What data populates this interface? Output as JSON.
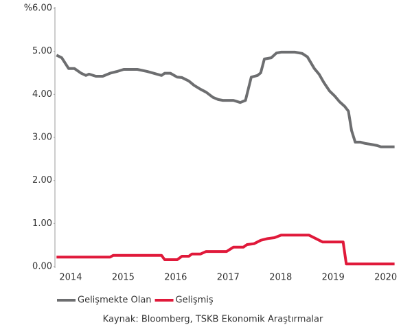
{
  "chart_data": {
    "type": "line",
    "source": "Kaynak: Bloomberg, TSKB Ekonomik Araştırmalar",
    "xlim": [
      2013.7,
      2020.24
    ],
    "xticks": [
      2014,
      2015,
      2016,
      2017,
      2018,
      2019,
      2020
    ],
    "ylim": [
      0,
      6
    ],
    "yticks": [
      {
        "value": 0,
        "label": "0.00"
      },
      {
        "value": 1,
        "label": "1.00"
      },
      {
        "value": 2,
        "label": "2.00"
      },
      {
        "value": 3,
        "label": "3.00"
      },
      {
        "value": 4,
        "label": "4.00"
      },
      {
        "value": 5,
        "label": "5.00"
      },
      {
        "value": 6,
        "label": "%6.00"
      }
    ],
    "grid": false,
    "series": [
      {
        "name": "Gelişmekte Olan",
        "color": "#6d6e70",
        "x": [
          2013.73,
          2013.83,
          2013.96,
          2014.07,
          2014.2,
          2014.29,
          2014.35,
          2014.48,
          2014.61,
          2014.75,
          2014.88,
          2015.01,
          2015.27,
          2015.46,
          2015.73,
          2015.79,
          2015.9,
          2016.03,
          2016.12,
          2016.25,
          2016.35,
          2016.47,
          2016.58,
          2016.71,
          2016.81,
          2016.9,
          2017.1,
          2017.23,
          2017.33,
          2017.44,
          2017.56,
          2017.62,
          2017.69,
          2017.82,
          2017.92,
          2018.01,
          2018.27,
          2018.41,
          2018.51,
          2018.64,
          2018.73,
          2018.82,
          2018.93,
          2019.03,
          2019.12,
          2019.22,
          2019.29,
          2019.35,
          2019.42,
          2019.52,
          2019.61,
          2019.71,
          2019.84,
          2019.91,
          2020.01,
          2020.17
        ],
        "values": [
          4.91,
          4.85,
          4.6,
          4.6,
          4.49,
          4.44,
          4.47,
          4.42,
          4.42,
          4.49,
          4.53,
          4.58,
          4.58,
          4.53,
          4.44,
          4.49,
          4.49,
          4.4,
          4.39,
          4.31,
          4.21,
          4.12,
          4.05,
          3.93,
          3.88,
          3.86,
          3.86,
          3.81,
          3.86,
          4.4,
          4.44,
          4.5,
          4.82,
          4.85,
          4.96,
          4.98,
          4.98,
          4.95,
          4.87,
          4.6,
          4.47,
          4.28,
          4.08,
          3.96,
          3.83,
          3.72,
          3.61,
          3.16,
          2.89,
          2.89,
          2.86,
          2.84,
          2.81,
          2.78,
          2.78,
          2.78
        ]
      },
      {
        "name": "Gelişmiş",
        "color": "#e0193a",
        "x": [
          2013.73,
          2014.75,
          2014.81,
          2015.73,
          2015.79,
          2016.03,
          2016.12,
          2016.25,
          2016.31,
          2016.47,
          2016.58,
          2016.97,
          2017.1,
          2017.29,
          2017.36,
          2017.49,
          2017.62,
          2017.75,
          2017.88,
          2018.01,
          2018.54,
          2018.67,
          2018.8,
          2019.19,
          2019.25,
          2020.17
        ],
        "values": [
          0.22,
          0.22,
          0.26,
          0.26,
          0.16,
          0.16,
          0.24,
          0.24,
          0.29,
          0.29,
          0.35,
          0.35,
          0.45,
          0.45,
          0.51,
          0.53,
          0.61,
          0.65,
          0.67,
          0.73,
          0.73,
          0.65,
          0.57,
          0.57,
          0.06,
          0.06
        ]
      }
    ]
  }
}
